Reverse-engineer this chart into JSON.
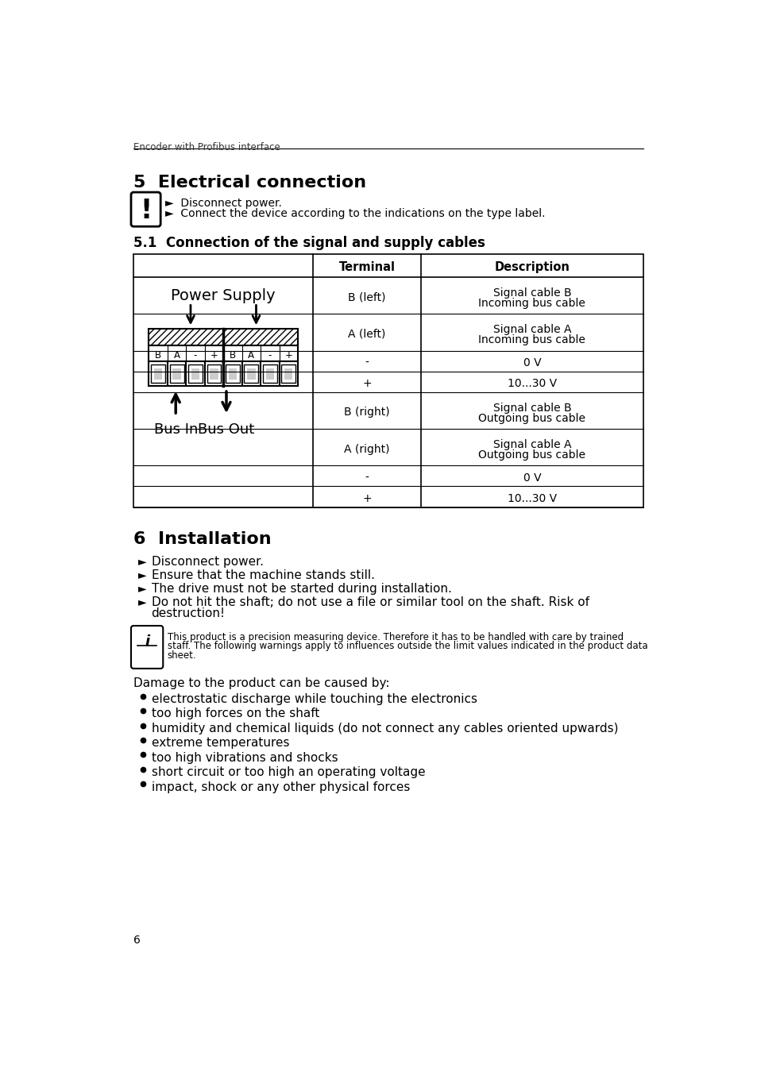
{
  "page_header": "Encoder with Profibus interface",
  "section5_title": "5  Electrical connection",
  "warning_lines": [
    "►  Disconnect power.",
    "►  Connect the device according to the indications on the type label."
  ],
  "section51_title": "5.1  Connection of the signal and supply cables",
  "table_header": [
    "Terminal",
    "Description"
  ],
  "table_rows": [
    [
      "B (left)",
      "Signal cable B\nIncoming bus cable"
    ],
    [
      "A (left)",
      "Signal cable A\nIncoming bus cable"
    ],
    [
      "-",
      "0 V"
    ],
    [
      "+",
      "10...30 V"
    ],
    [
      "B (right)",
      "Signal cable B\nOutgoing bus cable"
    ],
    [
      "A (right)",
      "Signal cable A\nOutgoing bus cable"
    ],
    [
      "-",
      "0 V"
    ],
    [
      "+",
      "10...30 V"
    ]
  ],
  "section6_title": "6  Installation",
  "section6_bullets": [
    "Disconnect power.",
    "Ensure that the machine stands still.",
    "The drive must not be started during installation.",
    "Do not hit the shaft; do not use a file or similar tool on the shaft. Risk of\ndestruction!"
  ],
  "info_text": "This product is a precision measuring device. Therefore it has to be handled with care by trained\nstaff. The following warnings apply to influences outside the limit values indicated in the product data\nsheet.",
  "damage_intro": "Damage to the product can be caused by:",
  "damage_bullets": [
    "electrostatic discharge while touching the electronics",
    "too high forces on the shaft",
    "humidity and chemical liquids (do not connect any cables oriented upwards)",
    "extreme temperatures",
    "too high vibrations and shocks",
    "short circuit or too high an operating voltage",
    "impact, shock or any other physical forces"
  ],
  "page_number": "6",
  "bg_color": "#ffffff",
  "text_color": "#000000"
}
